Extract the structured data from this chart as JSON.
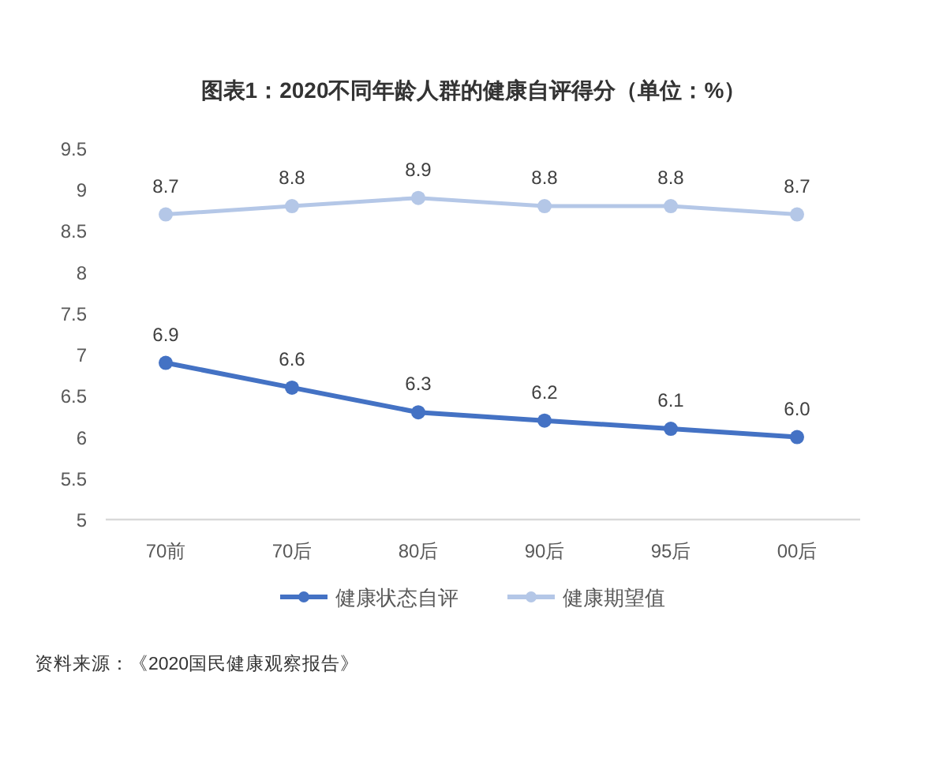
{
  "chart_data": {
    "type": "line",
    "title": "图表1：2020不同年龄人群的健康自评得分（单位：%）",
    "categories": [
      "70前",
      "70后",
      "80后",
      "90后",
      "95后",
      "00后"
    ],
    "series": [
      {
        "name": "健康状态自评",
        "color": "#4472c4",
        "values": [
          6.9,
          6.6,
          6.3,
          6.2,
          6.1,
          6.0
        ],
        "value_labels": [
          "6.9",
          "6.6",
          "6.3",
          "6.2",
          "6.1",
          "6.0"
        ]
      },
      {
        "name": "健康期望值",
        "color": "#b4c7e7",
        "values": [
          8.7,
          8.8,
          8.9,
          8.8,
          8.8,
          8.7
        ],
        "value_labels": [
          "8.7",
          "8.8",
          "8.9",
          "8.8",
          "8.8",
          "8.7"
        ]
      }
    ],
    "ylim": [
      5,
      9.5
    ],
    "yticks": [
      5,
      5.5,
      6,
      6.5,
      7,
      7.5,
      8,
      8.5,
      9,
      9.5
    ],
    "legend": "bottom",
    "marker": "circle",
    "line_style": "solid",
    "annotations": [
      "资料来源：《2020国民健康观察报告》"
    ]
  }
}
